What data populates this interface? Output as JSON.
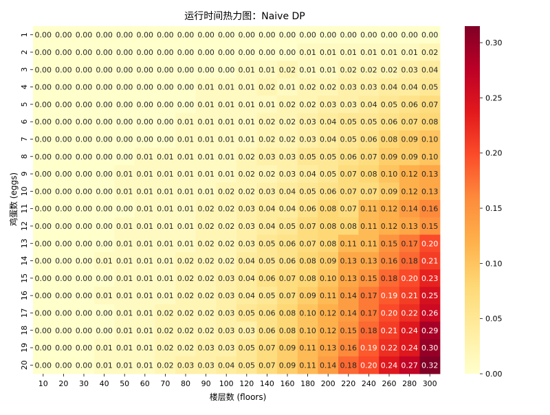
{
  "chart_data": {
    "type": "heatmap",
    "title": "运行时间热力图：Naive DP",
    "xlabel": "楼层数 (floors)",
    "ylabel": "鸡蛋数 (eggs)",
    "x_categories": [
      "10",
      "20",
      "30",
      "40",
      "50",
      "60",
      "70",
      "80",
      "90",
      "100",
      "120",
      "140",
      "160",
      "180",
      "200",
      "220",
      "240",
      "260",
      "280",
      "300"
    ],
    "y_categories": [
      "1",
      "2",
      "3",
      "4",
      "5",
      "6",
      "7",
      "8",
      "9",
      "10",
      "11",
      "12",
      "13",
      "14",
      "15",
      "16",
      "17",
      "18",
      "19",
      "20"
    ],
    "values": [
      [
        0.0,
        0.0,
        0.0,
        0.0,
        0.0,
        0.0,
        0.0,
        0.0,
        0.0,
        0.0,
        0.0,
        0.0,
        0.0,
        0.0,
        0.0,
        0.0,
        0.0,
        0.0,
        0.0,
        0.0
      ],
      [
        0.0,
        0.0,
        0.0,
        0.0,
        0.0,
        0.0,
        0.0,
        0.0,
        0.0,
        0.0,
        0.0,
        0.0,
        0.0,
        0.01,
        0.01,
        0.01,
        0.01,
        0.01,
        0.01,
        0.02
      ],
      [
        0.0,
        0.0,
        0.0,
        0.0,
        0.0,
        0.0,
        0.0,
        0.0,
        0.0,
        0.0,
        0.01,
        0.01,
        0.02,
        0.01,
        0.01,
        0.02,
        0.02,
        0.02,
        0.03,
        0.04
      ],
      [
        0.0,
        0.0,
        0.0,
        0.0,
        0.0,
        0.0,
        0.0,
        0.0,
        0.01,
        0.01,
        0.01,
        0.02,
        0.01,
        0.02,
        0.02,
        0.03,
        0.03,
        0.04,
        0.04,
        0.05
      ],
      [
        0.0,
        0.0,
        0.0,
        0.0,
        0.0,
        0.0,
        0.0,
        0.0,
        0.01,
        0.01,
        0.01,
        0.01,
        0.02,
        0.02,
        0.03,
        0.03,
        0.04,
        0.05,
        0.06,
        0.07
      ],
      [
        0.0,
        0.0,
        0.0,
        0.0,
        0.0,
        0.0,
        0.0,
        0.01,
        0.01,
        0.01,
        0.01,
        0.02,
        0.02,
        0.03,
        0.04,
        0.05,
        0.05,
        0.06,
        0.07,
        0.08
      ],
      [
        0.0,
        0.0,
        0.0,
        0.0,
        0.0,
        0.0,
        0.0,
        0.01,
        0.01,
        0.01,
        0.01,
        0.02,
        0.02,
        0.03,
        0.04,
        0.05,
        0.06,
        0.08,
        0.09,
        0.1
      ],
      [
        0.0,
        0.0,
        0.0,
        0.0,
        0.0,
        0.01,
        0.01,
        0.01,
        0.01,
        0.01,
        0.02,
        0.03,
        0.03,
        0.05,
        0.05,
        0.06,
        0.07,
        0.09,
        0.09,
        0.1
      ],
      [
        0.0,
        0.0,
        0.0,
        0.0,
        0.01,
        0.01,
        0.01,
        0.01,
        0.01,
        0.01,
        0.02,
        0.02,
        0.03,
        0.04,
        0.05,
        0.07,
        0.08,
        0.1,
        0.12,
        0.13
      ],
      [
        0.0,
        0.0,
        0.0,
        0.0,
        0.01,
        0.01,
        0.01,
        0.01,
        0.01,
        0.02,
        0.02,
        0.03,
        0.04,
        0.05,
        0.06,
        0.07,
        0.07,
        0.09,
        0.12,
        0.13
      ],
      [
        0.0,
        0.0,
        0.0,
        0.0,
        0.0,
        0.01,
        0.01,
        0.01,
        0.02,
        0.02,
        0.03,
        0.04,
        0.04,
        0.06,
        0.08,
        0.07,
        0.11,
        0.12,
        0.14,
        0.16
      ],
      [
        0.0,
        0.0,
        0.0,
        0.0,
        0.01,
        0.01,
        0.01,
        0.01,
        0.02,
        0.02,
        0.03,
        0.04,
        0.05,
        0.07,
        0.08,
        0.08,
        0.11,
        0.12,
        0.13,
        0.15
      ],
      [
        0.0,
        0.0,
        0.0,
        0.0,
        0.01,
        0.01,
        0.01,
        0.01,
        0.02,
        0.02,
        0.03,
        0.05,
        0.06,
        0.07,
        0.08,
        0.11,
        0.11,
        0.15,
        0.17,
        0.2
      ],
      [
        0.0,
        0.0,
        0.0,
        0.01,
        0.01,
        0.01,
        0.01,
        0.02,
        0.02,
        0.02,
        0.04,
        0.05,
        0.06,
        0.08,
        0.09,
        0.13,
        0.13,
        0.16,
        0.18,
        0.21
      ],
      [
        0.0,
        0.0,
        0.0,
        0.0,
        0.01,
        0.01,
        0.01,
        0.02,
        0.02,
        0.03,
        0.04,
        0.06,
        0.07,
        0.08,
        0.1,
        0.13,
        0.15,
        0.18,
        0.2,
        0.23
      ],
      [
        0.0,
        0.0,
        0.0,
        0.01,
        0.01,
        0.01,
        0.01,
        0.02,
        0.02,
        0.03,
        0.04,
        0.05,
        0.07,
        0.09,
        0.11,
        0.14,
        0.17,
        0.19,
        0.21,
        0.25
      ],
      [
        0.0,
        0.0,
        0.0,
        0.0,
        0.01,
        0.01,
        0.02,
        0.02,
        0.02,
        0.03,
        0.05,
        0.06,
        0.08,
        0.1,
        0.12,
        0.14,
        0.17,
        0.2,
        0.22,
        0.26
      ],
      [
        0.0,
        0.0,
        0.0,
        0.0,
        0.01,
        0.01,
        0.02,
        0.02,
        0.02,
        0.03,
        0.03,
        0.06,
        0.08,
        0.1,
        0.12,
        0.15,
        0.18,
        0.21,
        0.24,
        0.29
      ],
      [
        0.0,
        0.0,
        0.0,
        0.01,
        0.01,
        0.01,
        0.02,
        0.02,
        0.03,
        0.03,
        0.05,
        0.07,
        0.09,
        0.11,
        0.13,
        0.16,
        0.19,
        0.22,
        0.24,
        0.3
      ],
      [
        0.0,
        0.0,
        0.0,
        0.01,
        0.01,
        0.01,
        0.02,
        0.03,
        0.03,
        0.04,
        0.05,
        0.07,
        0.09,
        0.11,
        0.14,
        0.18,
        0.2,
        0.24,
        0.27,
        0.32
      ]
    ],
    "colorbar": {
      "min": 0.0,
      "max": 0.315,
      "ticks": [
        0.0,
        0.05,
        0.1,
        0.15,
        0.2,
        0.25,
        0.3
      ],
      "tick_labels": [
        "0.00",
        "0.05",
        "0.10",
        "0.15",
        "0.20",
        "0.25",
        "0.30"
      ],
      "colormap": "YlOrRd",
      "colors": [
        "#ffffcc",
        "#ffeda0",
        "#fed976",
        "#feb24c",
        "#fd8d3c",
        "#fc4e2a",
        "#e31a1c",
        "#bd0026",
        "#800026"
      ]
    },
    "annotation_format": "2 decimals",
    "grid": false,
    "legend": "colorbar-right"
  }
}
